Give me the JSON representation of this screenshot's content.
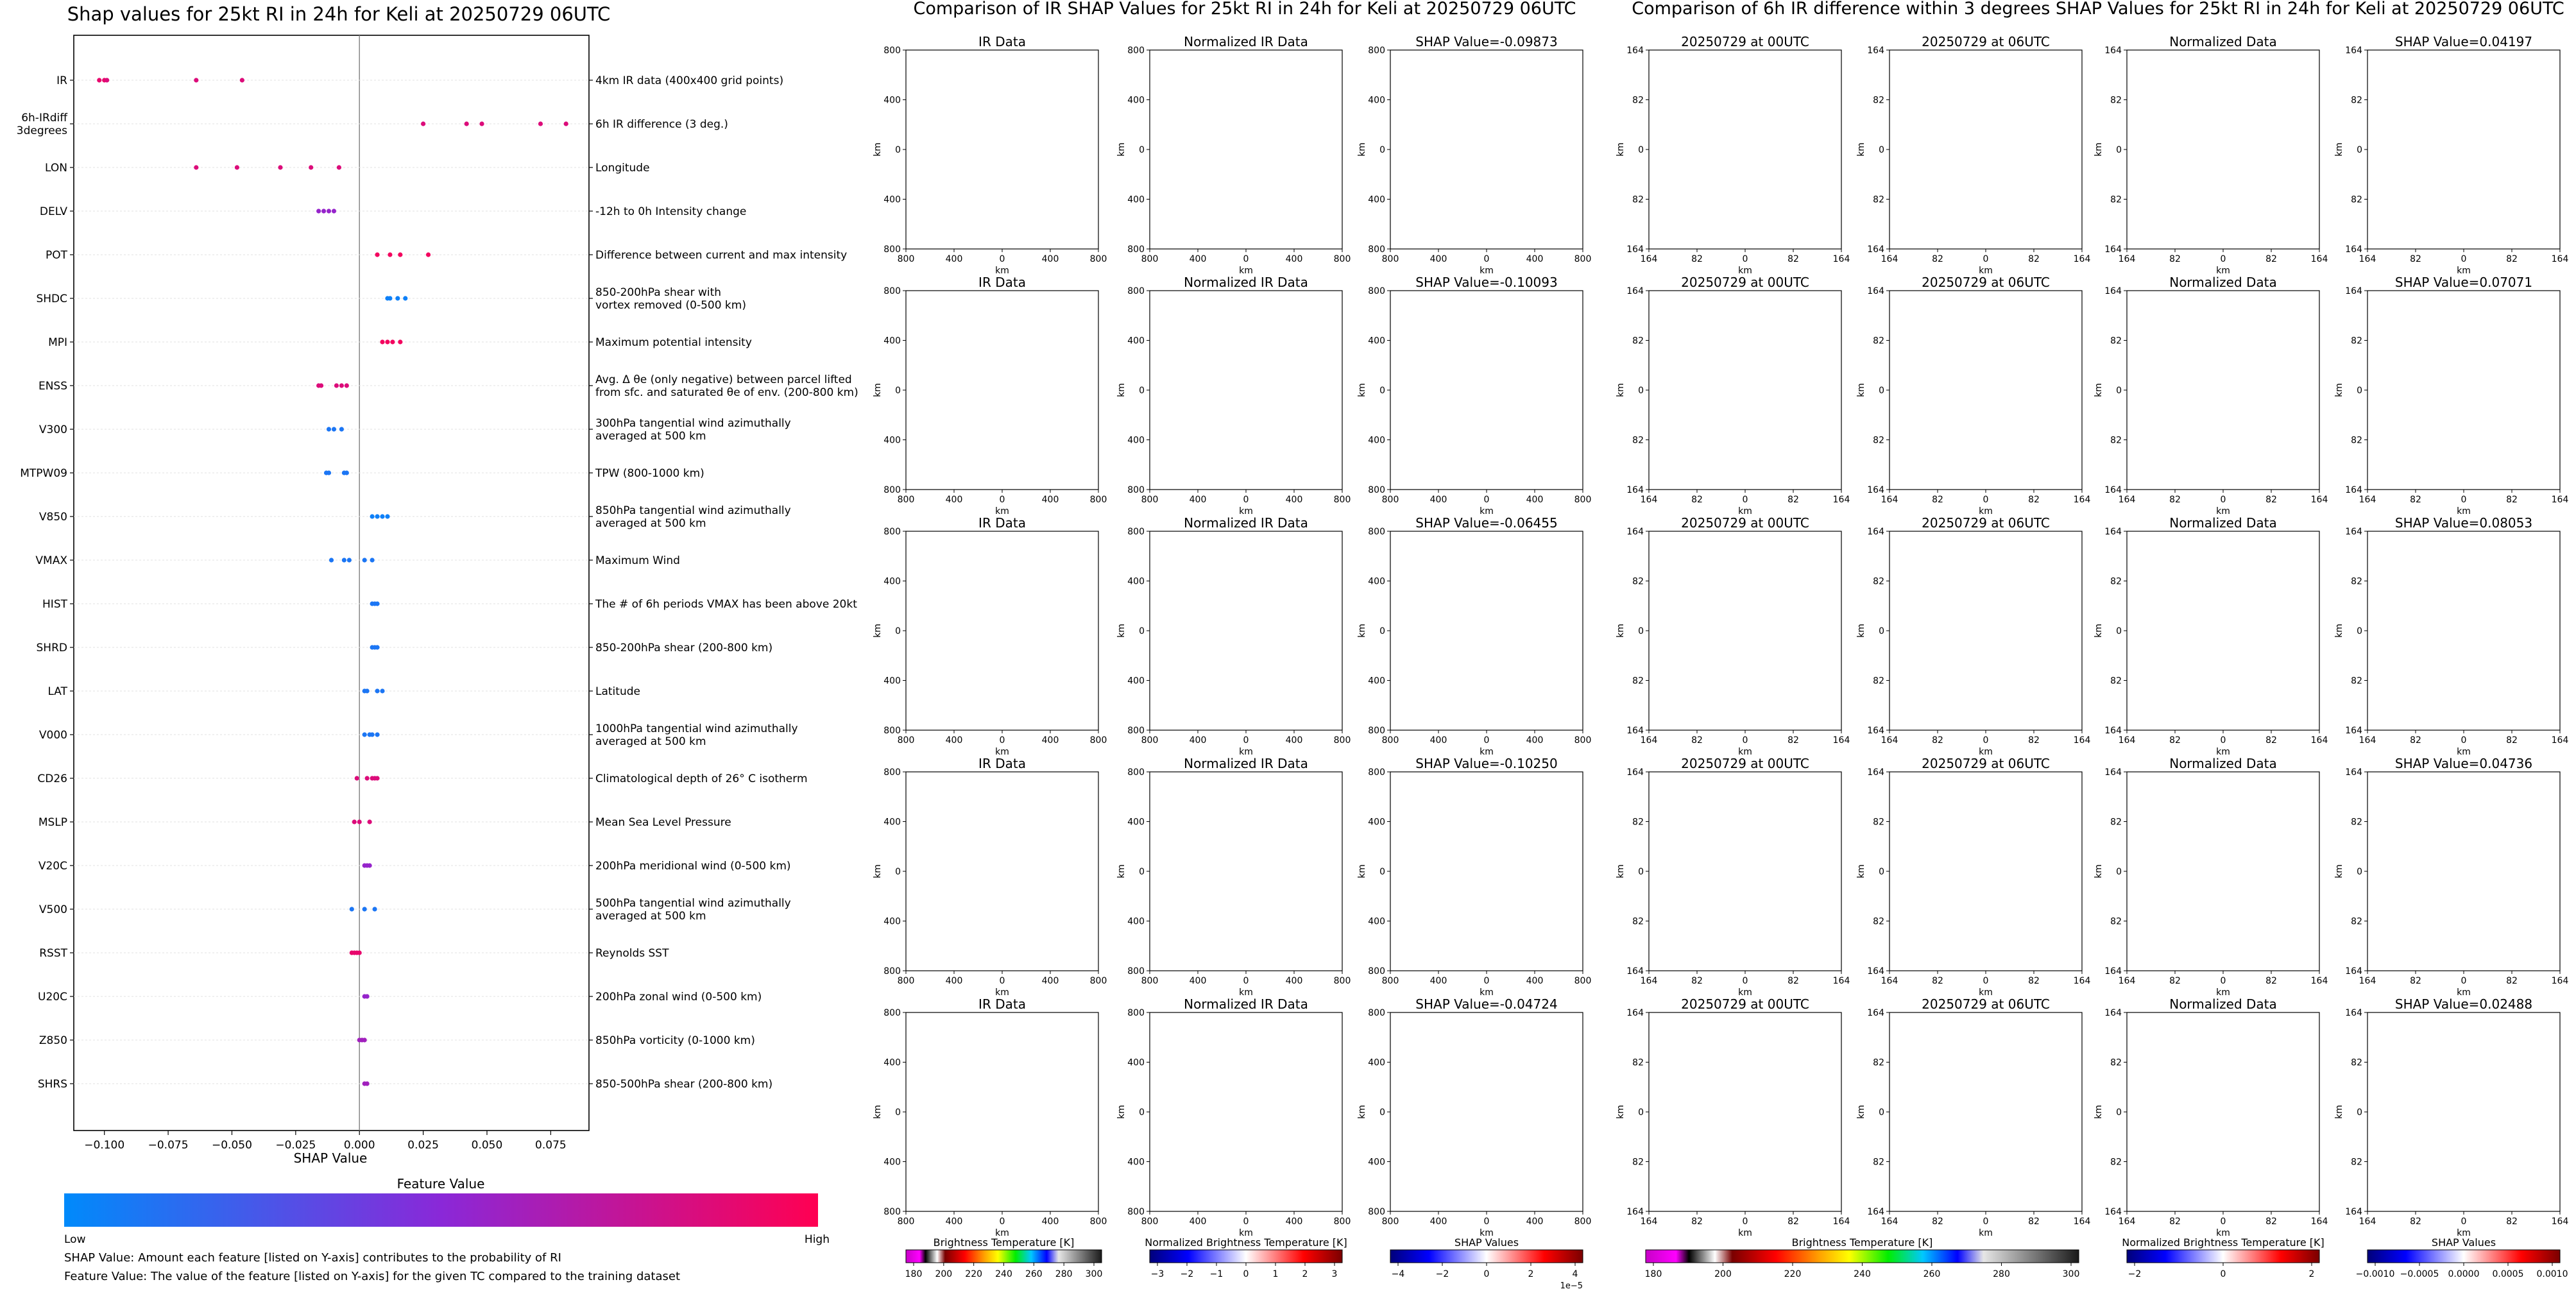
{
  "colors": {
    "low": "#008afb",
    "high": "#ff0052",
    "axis": "#000000"
  },
  "left": {
    "title": "Shap values for 25kt RI in 24h for Keli at 20250729 06UTC",
    "xlabel": "SHAP Value",
    "xticks": [
      "−0.100",
      "−0.075",
      "−0.050",
      "−0.025",
      "0.000",
      "0.025",
      "0.050",
      "0.075"
    ],
    "colorbar_title": "Feature Value",
    "colorbar_low": "Low",
    "colorbar_high": "High",
    "footnote1": "SHAP Value: Amount each feature [listed on Y-axis] contributes to the probability of RI",
    "footnote2": "Feature Value: The value of the feature [listed on Y-axis] for the given TC compared to the training dataset",
    "features": [
      {
        "name": "IR",
        "desc": [
          "4km IR data (400x400 grid points)"
        ]
      },
      {
        "name": "6h-IRdiff 3degrees",
        "name_lines": [
          "6h-IRdiff",
          "3degrees"
        ],
        "desc": [
          "6h IR difference (3 deg.)"
        ]
      },
      {
        "name": "LON",
        "desc": [
          "Longitude"
        ]
      },
      {
        "name": "DELV",
        "desc": [
          "-12h to 0h Intensity change"
        ]
      },
      {
        "name": "POT",
        "desc": [
          "Difference between current and max intensity"
        ]
      },
      {
        "name": "SHDC",
        "desc": [
          "850-200hPa shear with",
          "vortex removed (0-500 km)"
        ]
      },
      {
        "name": "MPI",
        "desc": [
          "Maximum potential intensity"
        ]
      },
      {
        "name": "ENSS",
        "desc": [
          "Avg. Δ θe (only negative) between parcel lifted",
          "from sfc. and saturated θe of env. (200-800 km)"
        ]
      },
      {
        "name": "V300",
        "desc": [
          "300hPa tangential wind azimuthally",
          "averaged at 500 km"
        ]
      },
      {
        "name": "MTPW09",
        "desc": [
          "TPW (800-1000 km)"
        ]
      },
      {
        "name": "V850",
        "desc": [
          "850hPa tangential wind azimuthally",
          "averaged at 500 km"
        ]
      },
      {
        "name": "VMAX",
        "desc": [
          "Maximum Wind"
        ]
      },
      {
        "name": "HIST",
        "desc": [
          "The # of 6h periods VMAX has been above 20kt"
        ]
      },
      {
        "name": "SHRD",
        "desc": [
          "850-200hPa shear (200-800 km)"
        ]
      },
      {
        "name": "LAT",
        "desc": [
          "Latitude"
        ]
      },
      {
        "name": "V000",
        "desc": [
          "1000hPa tangential wind azimuthally",
          "averaged at 500 km"
        ]
      },
      {
        "name": "CD26",
        "desc": [
          "Climatological depth of 26° C isotherm"
        ]
      },
      {
        "name": "MSLP",
        "desc": [
          "Mean Sea Level Pressure"
        ]
      },
      {
        "name": "V20C",
        "desc": [
          "200hPa meridional wind (0-500 km)"
        ]
      },
      {
        "name": "V500",
        "desc": [
          "500hPa tangential wind azimuthally",
          "averaged at 500 km"
        ]
      },
      {
        "name": "RSST",
        "desc": [
          "Reynolds SST"
        ]
      },
      {
        "name": "U20C",
        "desc": [
          "200hPa zonal wind (0-500 km)"
        ]
      },
      {
        "name": "Z850",
        "desc": [
          "850hPa vorticity (0-1000 km)"
        ]
      },
      {
        "name": "SHRS",
        "desc": [
          "850-500hPa shear (200-800 km)"
        ]
      }
    ]
  },
  "mid": {
    "title": "Comparison of IR SHAP Values for 25kt RI in 24h for Keli at 20250729 06UTC",
    "col_titles": [
      "IR Data",
      "Normalized IR Data"
    ],
    "shap_titles": [
      "SHAP Value=-0.09873",
      "SHAP Value=-0.10093",
      "SHAP Value=-0.06455",
      "SHAP Value=-0.10250",
      "SHAP Value=-0.04724"
    ],
    "yticks": [
      "800",
      "400",
      "0",
      "400",
      "800"
    ],
    "xticks": [
      "800",
      "400",
      "0",
      "400",
      "800"
    ],
    "axis_label": "km",
    "cb1_label": "Brightness Temperature [K]",
    "cb1_ticks": [
      "180",
      "200",
      "220",
      "240",
      "260",
      "280",
      "300"
    ],
    "cb2_label": "Normalized Brightness Temperature [K]",
    "cb2_ticks": [
      "−3",
      "−2",
      "−1",
      "0",
      "1",
      "2",
      "3"
    ],
    "cb3_label": "SHAP Values",
    "cb3_ticks": [
      "−4",
      "−2",
      "0",
      "2",
      "4"
    ],
    "cb3_exp": "1e−5"
  },
  "right": {
    "title": "Comparison of 6h IR difference within 3 degrees SHAP Values for 25kt RI in 24h for Keli at 20250729 06UTC",
    "col_titles": [
      "20250729 at 00UTC",
      "20250729 at 06UTC",
      "Normalized Data"
    ],
    "shap_titles": [
      "SHAP Value=0.04197",
      "SHAP Value=0.07071",
      "SHAP Value=0.08053",
      "SHAP Value=0.04736",
      "SHAP Value=0.02488"
    ],
    "yticks": [
      "164",
      "82",
      "0",
      "82",
      "164"
    ],
    "xticks": [
      "164",
      "82",
      "0",
      "82",
      "164"
    ],
    "axis_label": "km",
    "cb1_label": "Brightness Temperature [K]",
    "cb1_ticks": [
      "180",
      "200",
      "220",
      "240",
      "260",
      "280",
      "300"
    ],
    "cb2_label": "Normalized Brightness Temperature [K]",
    "cb2_ticks": [
      "−2",
      "0",
      "2"
    ],
    "cb3_label": "SHAP Values",
    "cb3_ticks": [
      "−0.0010",
      "−0.0005",
      "0.0000",
      "0.0005",
      "0.0010"
    ]
  },
  "chart_data": [
    {
      "type": "scatter",
      "title": "Shap values for 25kt RI in 24h for Keli at 20250729 06UTC",
      "xlabel": "SHAP Value",
      "xlim": [
        -0.112,
        0.09
      ],
      "colorbar": "Feature Value (Low to High)",
      "series": [
        {
          "feature": "IR",
          "x": [
            -0.102,
            -0.1,
            -0.099,
            -0.064,
            -0.046
          ],
          "c": [
            0.9,
            0.9,
            0.85,
            0.85,
            0.85
          ]
        },
        {
          "feature": "6h-IRdiff 3degrees",
          "x": [
            0.025,
            0.042,
            0.048,
            0.071,
            0.081
          ],
          "c": [
            0.85,
            0.85,
            0.85,
            0.85,
            0.85
          ]
        },
        {
          "feature": "LON",
          "x": [
            -0.064,
            -0.048,
            -0.031,
            -0.019,
            -0.008
          ],
          "c": [
            0.85,
            0.85,
            0.85,
            0.85,
            0.85
          ]
        },
        {
          "feature": "DELV",
          "x": [
            -0.016,
            -0.014,
            -0.012,
            -0.01
          ],
          "c": [
            0.55,
            0.55,
            0.55,
            0.55
          ]
        },
        {
          "feature": "POT",
          "x": [
            0.007,
            0.012,
            0.016,
            0.027
          ],
          "c": [
            0.95,
            0.95,
            0.95,
            0.95
          ]
        },
        {
          "feature": "SHDC",
          "x": [
            0.011,
            0.012,
            0.015,
            0.018
          ],
          "c": [
            0.05,
            0.05,
            0.05,
            0.05
          ]
        },
        {
          "feature": "MPI",
          "x": [
            0.009,
            0.011,
            0.013,
            0.016
          ],
          "c": [
            0.95,
            0.95,
            0.95,
            0.95
          ]
        },
        {
          "feature": "ENSS",
          "x": [
            -0.016,
            -0.015,
            -0.009,
            -0.007,
            -0.005
          ],
          "c": [
            0.85,
            0.85,
            0.85,
            0.85,
            0.85
          ]
        },
        {
          "feature": "V300",
          "x": [
            -0.012,
            -0.01,
            -0.007
          ],
          "c": [
            0.1,
            0.1,
            0.1
          ]
        },
        {
          "feature": "MTPW09",
          "x": [
            -0.013,
            -0.012,
            -0.006,
            -0.005
          ],
          "c": [
            0.1,
            0.1,
            0.1,
            0.1
          ]
        },
        {
          "feature": "V850",
          "x": [
            0.005,
            0.007,
            0.009,
            0.011
          ],
          "c": [
            0.05,
            0.05,
            0.05,
            0.05
          ]
        },
        {
          "feature": "VMAX",
          "x": [
            -0.011,
            -0.006,
            -0.004,
            0.002,
            0.005
          ],
          "c": [
            0.1,
            0.1,
            0.1,
            0.1,
            0.1
          ]
        },
        {
          "feature": "HIST",
          "x": [
            0.005,
            0.006,
            0.007
          ],
          "c": [
            0.1,
            0.1,
            0.1
          ]
        },
        {
          "feature": "SHRD",
          "x": [
            0.005,
            0.006,
            0.007
          ],
          "c": [
            0.1,
            0.1,
            0.1
          ]
        },
        {
          "feature": "LAT",
          "x": [
            0.002,
            0.003,
            0.007,
            0.009
          ],
          "c": [
            0.1,
            0.1,
            0.1,
            0.1
          ]
        },
        {
          "feature": "V000",
          "x": [
            0.002,
            0.004,
            0.005,
            0.007
          ],
          "c": [
            0.1,
            0.1,
            0.1,
            0.1
          ]
        },
        {
          "feature": "CD26",
          "x": [
            -0.001,
            0.003,
            0.005,
            0.006,
            0.007
          ],
          "c": [
            0.85,
            0.85,
            0.85,
            0.85,
            0.85
          ]
        },
        {
          "feature": "MSLP",
          "x": [
            -0.002,
            0.0,
            0.004
          ],
          "c": [
            0.85,
            0.85,
            0.85
          ]
        },
        {
          "feature": "V20C",
          "x": [
            0.002,
            0.003,
            0.004
          ],
          "c": [
            0.55,
            0.55,
            0.55
          ]
        },
        {
          "feature": "V500",
          "x": [
            -0.003,
            0.002,
            0.006
          ],
          "c": [
            0.1,
            0.1,
            0.1
          ]
        },
        {
          "feature": "RSST",
          "x": [
            -0.003,
            -0.002,
            -0.001,
            0.0
          ],
          "c": [
            0.9,
            0.9,
            0.9,
            0.9
          ]
        },
        {
          "feature": "U20C",
          "x": [
            0.002,
            0.003
          ],
          "c": [
            0.55,
            0.55
          ]
        },
        {
          "feature": "Z850",
          "x": [
            0.0,
            0.001,
            0.002
          ],
          "c": [
            0.6,
            0.6,
            0.6
          ]
        },
        {
          "feature": "SHRS",
          "x": [
            0.002,
            0.003
          ],
          "c": [
            0.6,
            0.6
          ]
        }
      ]
    },
    {
      "type": "heatmap",
      "title": "Comparison of IR SHAP Values for 25kt RI in 24h for Keli at 20250729 06UTC",
      "xlabel": "km",
      "ylabel": "km",
      "xlim": [
        -800,
        800
      ],
      "ylim": [
        -800,
        800
      ],
      "shap_values": [
        -0.09873,
        -0.10093,
        -0.06455,
        -0.1025,
        -0.04724
      ]
    },
    {
      "type": "heatmap",
      "title": "Comparison of 6h IR difference within 3 degrees SHAP Values for 25kt RI in 24h for Keli at 20250729 06UTC",
      "xlabel": "km",
      "ylabel": "km",
      "xlim": [
        -164,
        164
      ],
      "ylim": [
        -164,
        164
      ],
      "shap_values": [
        0.04197,
        0.07071,
        0.08053,
        0.04736,
        0.02488
      ]
    }
  ]
}
